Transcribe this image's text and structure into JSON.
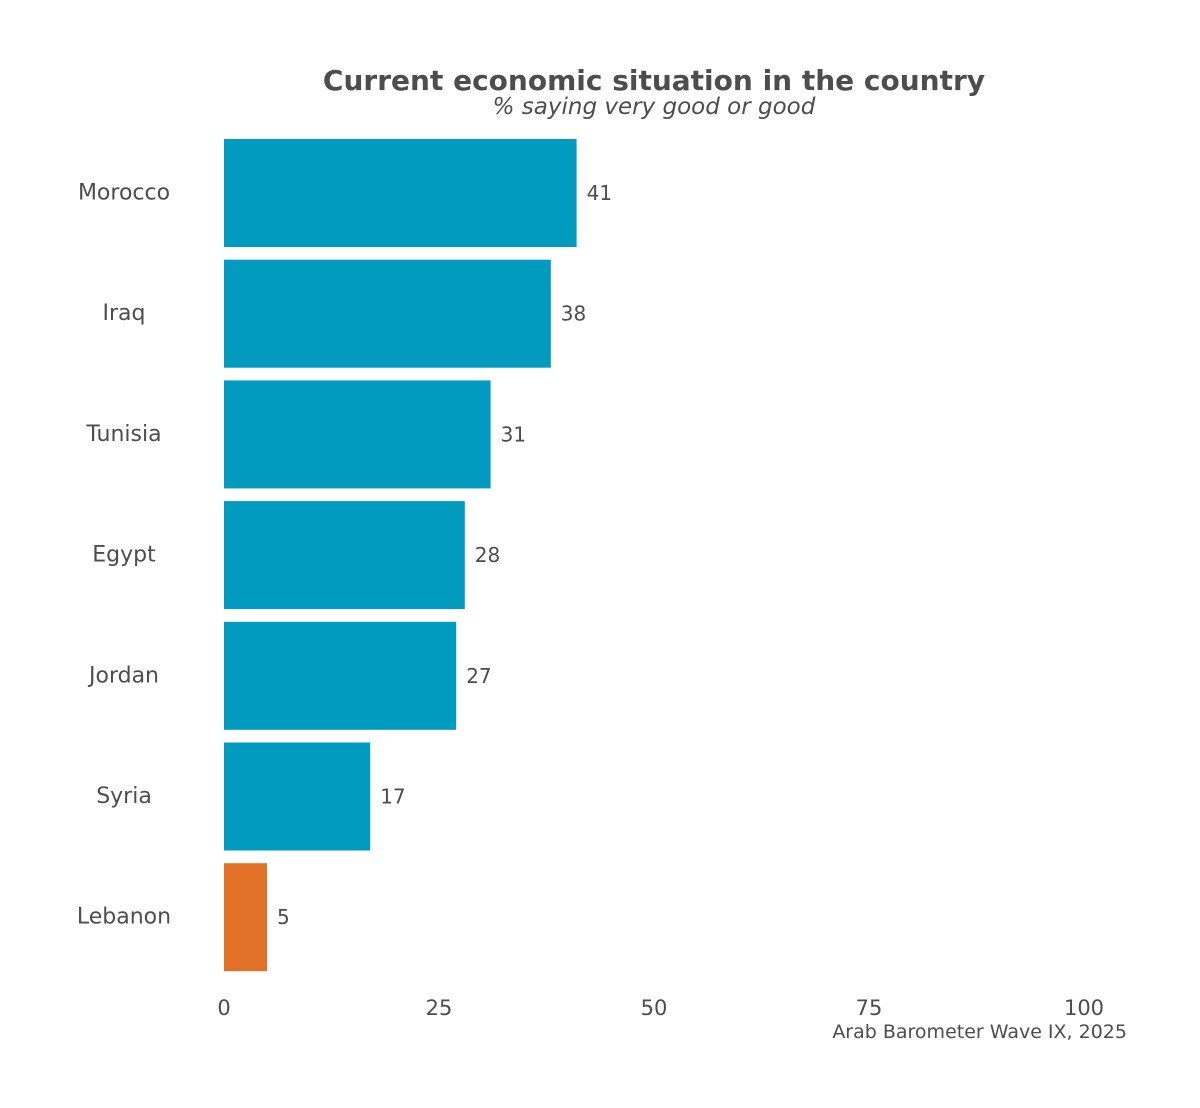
{
  "chart_data": {
    "type": "bar",
    "orientation": "horizontal",
    "title": "Current economic situation in the country",
    "subtitle": "% saying very good or good",
    "caption": "Arab Barometer Wave IX, 2025",
    "categories": [
      "Morocco",
      "Iraq",
      "Tunisia",
      "Egypt",
      "Jordan",
      "Syria",
      "Lebanon"
    ],
    "values": [
      41,
      38,
      31,
      28,
      27,
      17,
      5
    ],
    "colors": [
      "#009bbf",
      "#009bbf",
      "#009bbf",
      "#009bbf",
      "#009bbf",
      "#009bbf",
      "#e07127"
    ],
    "xlim": [
      0,
      100
    ],
    "xticks": [
      0,
      25,
      50,
      75,
      100
    ],
    "grid": false,
    "legend": "none"
  }
}
